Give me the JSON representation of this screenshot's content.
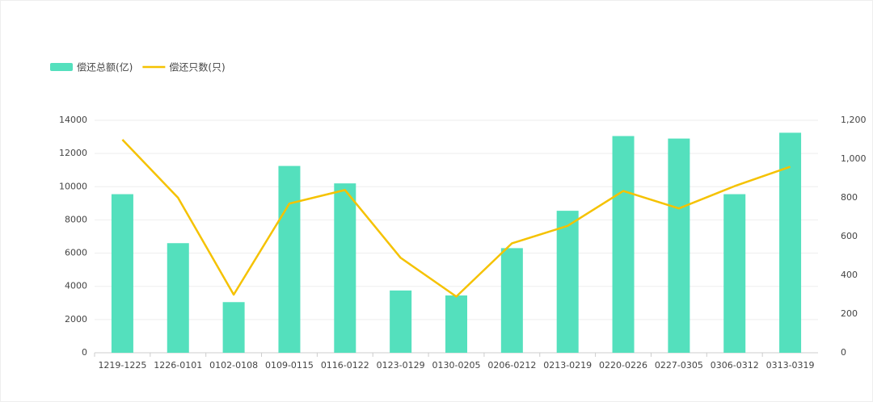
{
  "chart_data": {
    "type": "bar_line",
    "categories": [
      "1219-1225",
      "1226-0101",
      "0102-0108",
      "0109-0115",
      "0116-0122",
      "0123-0129",
      "0130-0205",
      "0206-0212",
      "0213-0219",
      "0220-0226",
      "0227-0305",
      "0306-0312",
      "0313-0319"
    ],
    "series": [
      {
        "name": "偿还总额(亿)",
        "type": "bar",
        "color": "#54e0bd",
        "values": [
          9550,
          6600,
          3050,
          11250,
          10200,
          3750,
          3450,
          6300,
          8550,
          13050,
          12900,
          9550,
          13250
        ]
      },
      {
        "name": "偿还只数(只)",
        "type": "line",
        "color": "#f5c200",
        "axis": "y2",
        "values": [
          1100,
          800,
          300,
          770,
          840,
          490,
          290,
          565,
          655,
          835,
          745,
          860,
          960
        ]
      }
    ],
    "ylim": [
      0,
      14000
    ],
    "yticks": [
      0,
      2000,
      4000,
      6000,
      8000,
      10000,
      12000,
      14000
    ],
    "y2lim": [
      0,
      1200
    ],
    "y2ticks": [
      0,
      200,
      400,
      600,
      800,
      {
        "value": 1000,
        "label": "1,000"
      },
      {
        "value": 1200,
        "label": "1,200"
      }
    ],
    "grid": true,
    "legend": "top-left"
  }
}
